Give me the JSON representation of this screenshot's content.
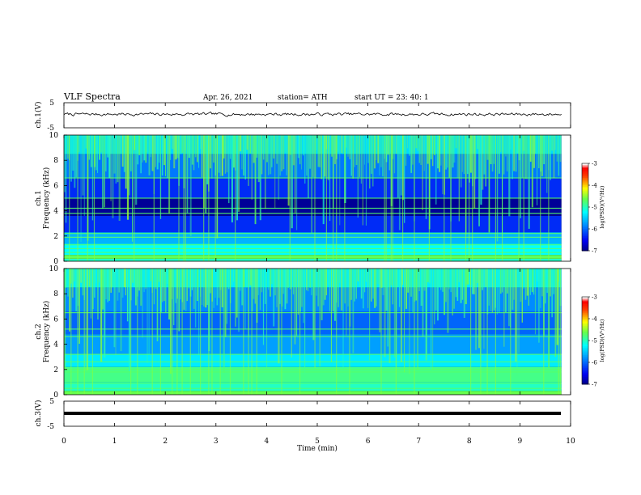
{
  "header": {
    "title": "VLF  Spectra",
    "date": "Apr. 26, 2021",
    "station": "station= ATH",
    "start": "start  UT  =   23: 40: 1"
  },
  "chart_data": [
    {
      "type": "line",
      "name": "ch1-waveform",
      "ylabel": "ch.1(V)",
      "ylim": [
        -5,
        5
      ],
      "yticks": [
        "5",
        "-5"
      ],
      "x_range": [
        0,
        9.82
      ],
      "baseline_v": 0.4,
      "noise_amplitude_v": 0.6
    },
    {
      "type": "heatmap",
      "name": "ch1-spectrogram",
      "ylabel_line1": "ch.1",
      "ylabel_line2": "Frequency  (kHz)",
      "ylim": [
        0,
        10
      ],
      "yticks": [
        "0",
        "2",
        "4",
        "6",
        "8",
        "10"
      ],
      "xlim": [
        0,
        10
      ],
      "colorbar": {
        "label": "log(PSD)(V²/Hz)",
        "range": [
          -7,
          -3
        ],
        "ticks": [
          "-3",
          "-4",
          "-5",
          "-6",
          "-7"
        ]
      },
      "bands_khz": [
        {
          "from": 0.0,
          "to": 0.2,
          "level": -5.0
        },
        {
          "from": 0.2,
          "to": 0.5,
          "level": -4.6
        },
        {
          "from": 0.5,
          "to": 1.4,
          "level": -5.2
        },
        {
          "from": 1.4,
          "to": 2.3,
          "level": -5.6
        },
        {
          "from": 2.3,
          "to": 3.6,
          "level": -6.3
        },
        {
          "from": 3.6,
          "to": 5.0,
          "level": -6.9
        },
        {
          "from": 5.0,
          "to": 6.6,
          "level": -6.3
        },
        {
          "from": 6.6,
          "to": 8.5,
          "level": -5.9
        },
        {
          "from": 8.5,
          "to": 10.0,
          "level": -5.4
        }
      ],
      "lines_khz": [
        0.35,
        0.7,
        1.0,
        1.3,
        1.9,
        2.2,
        3.8,
        4.2,
        5.0,
        6.6
      ],
      "data_end_min": 9.82
    },
    {
      "type": "heatmap",
      "name": "ch2-spectrogram",
      "ylabel_line1": "ch.2",
      "ylabel_line2": "Frequency  (kHz)",
      "ylim": [
        0,
        10
      ],
      "yticks": [
        "0",
        "2",
        "4",
        "6",
        "8",
        "10"
      ],
      "xlim": [
        0,
        10
      ],
      "colorbar": {
        "label": "log(PSD)(V²/Hz)",
        "range": [
          -7,
          -3
        ],
        "ticks": [
          "-3",
          "-4",
          "-5",
          "-6",
          "-7"
        ]
      },
      "bands_khz": [
        {
          "from": 0.0,
          "to": 0.3,
          "level": -4.6
        },
        {
          "from": 0.3,
          "to": 1.0,
          "level": -5.0
        },
        {
          "from": 1.0,
          "to": 2.2,
          "level": -4.8
        },
        {
          "from": 2.2,
          "to": 3.2,
          "level": -5.3
        },
        {
          "from": 3.2,
          "to": 4.8,
          "level": -5.7
        },
        {
          "from": 4.8,
          "to": 6.6,
          "level": -6.0
        },
        {
          "from": 6.6,
          "to": 8.5,
          "level": -5.8
        },
        {
          "from": 8.5,
          "to": 10.0,
          "level": -5.3
        }
      ],
      "lines_khz": [
        0.5,
        0.9,
        1.8,
        2.0,
        2.6,
        3.2,
        4.6,
        5.2,
        6.5
      ],
      "data_end_min": 9.82
    },
    {
      "type": "line",
      "name": "ch3-waveform",
      "ylabel": "ch.3(V)",
      "ylim": [
        -5,
        5
      ],
      "yticks": [
        "5",
        "-5"
      ],
      "x_range": [
        0,
        9.82
      ],
      "baseline_v": 0.0
    }
  ],
  "xaxis": {
    "label": "Time  (min)",
    "ticks": [
      "0",
      "1",
      "2",
      "3",
      "4",
      "5",
      "6",
      "7",
      "8",
      "9",
      "10"
    ],
    "range": [
      0,
      10
    ]
  }
}
